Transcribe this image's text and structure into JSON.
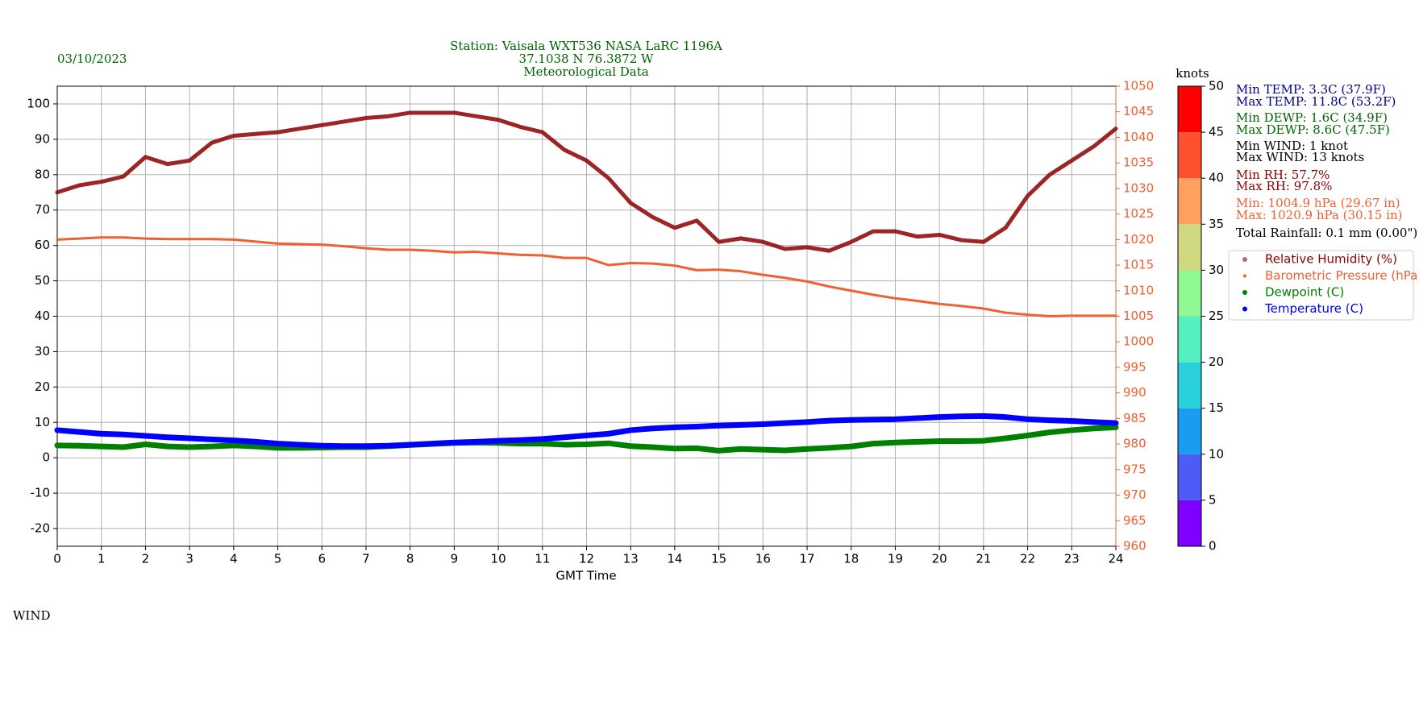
{
  "chart_data": {
    "type": "line",
    "date": "03/10/2023",
    "title": [
      "Station:  Vaisala WXT536  NASA LaRC 1196A",
      "37.1038 N 76.3872 W",
      "Meteorological Data"
    ],
    "xlabel": "GMT Time",
    "x": [
      0,
      0.5,
      1,
      1.5,
      2,
      2.5,
      3,
      3.5,
      4,
      4.5,
      5,
      5.5,
      6,
      6.5,
      7,
      7.5,
      8,
      8.5,
      9,
      9.5,
      10,
      10.5,
      11,
      11.5,
      12,
      12.5,
      13,
      13.5,
      14,
      14.5,
      15,
      15.5,
      16,
      16.5,
      17,
      17.5,
      18,
      18.5,
      19,
      19.5,
      20,
      20.5,
      21,
      21.5,
      22,
      22.5,
      23,
      23.5,
      24
    ],
    "xlim": [
      0,
      24
    ],
    "xticks": [
      0,
      1,
      2,
      3,
      4,
      5,
      6,
      7,
      8,
      9,
      10,
      11,
      12,
      13,
      14,
      15,
      16,
      17,
      18,
      19,
      20,
      21,
      22,
      23,
      24
    ],
    "ylim": [
      -25,
      105
    ],
    "yticks": [
      -20,
      -10,
      0,
      10,
      20,
      30,
      40,
      50,
      60,
      70,
      80,
      90,
      100
    ],
    "y2lim": [
      960,
      1050
    ],
    "y2ticks": [
      960,
      965,
      970,
      975,
      980,
      985,
      990,
      995,
      1000,
      1005,
      1010,
      1015,
      1020,
      1025,
      1030,
      1035,
      1040,
      1045,
      1050
    ],
    "y2color": "#f06030",
    "grid": true,
    "legend": "right",
    "series": [
      {
        "name": "Relative Humidity (%)",
        "color": "#8b0000",
        "values": [
          75,
          77,
          78,
          79.5,
          85,
          83,
          84,
          89,
          91,
          91.5,
          92,
          93,
          94,
          95,
          96,
          96.5,
          97.5,
          97.5,
          97.5,
          96.5,
          95.5,
          93.5,
          92,
          87,
          84,
          79,
          72,
          68,
          65,
          67,
          61,
          62,
          61,
          59,
          59.5,
          58.5,
          61,
          64,
          64,
          62.5,
          63,
          61.5,
          61,
          65,
          74,
          80,
          84,
          88,
          93
        ]
      },
      {
        "name": "Barometric Pressure (hPa)",
        "color": "#f06030",
        "axis": "y2",
        "values": [
          1020,
          1020.2,
          1020.4,
          1020.4,
          1020.2,
          1020.1,
          1020.1,
          1020.1,
          1020,
          1019.6,
          1019.2,
          1019.1,
          1019,
          1018.7,
          1018.3,
          1018,
          1018,
          1017.8,
          1017.5,
          1017.6,
          1017.3,
          1017,
          1016.9,
          1016.4,
          1016.4,
          1015,
          1015.4,
          1015.3,
          1014.9,
          1014,
          1014.1,
          1013.8,
          1013.1,
          1012.5,
          1011.8,
          1010.8,
          1010,
          1009.2,
          1008.5,
          1008,
          1007.4,
          1007,
          1006.5,
          1005.7,
          1005.3,
          1005,
          1005.1,
          1005.1,
          1005.1
        ]
      },
      {
        "name": "Dewpoint (C)",
        "color": "#008000",
        "values": [
          3.5,
          3.4,
          3.2,
          3,
          3.8,
          3.2,
          3,
          3.2,
          3.5,
          3.2,
          2.8,
          2.8,
          2.9,
          3,
          3,
          3.3,
          3.6,
          3.9,
          4.2,
          4.3,
          4.2,
          4,
          4,
          3.7,
          3.8,
          4.1,
          3.3,
          3,
          2.6,
          2.7,
          2,
          2.5,
          2.3,
          2.1,
          2.5,
          2.8,
          3.2,
          4,
          4.3,
          4.5,
          4.7,
          4.7,
          4.8,
          5.5,
          6.3,
          7.2,
          7.8,
          8.3,
          8.6
        ]
      },
      {
        "name": "Temperature (C)",
        "color": "#0000ff",
        "values": [
          7.8,
          7.3,
          6.8,
          6.6,
          6.2,
          5.8,
          5.5,
          5.2,
          4.9,
          4.5,
          4,
          3.7,
          3.4,
          3.3,
          3.3,
          3.4,
          3.7,
          4,
          4.3,
          4.5,
          4.8,
          5,
          5.3,
          5.8,
          6.3,
          6.8,
          7.8,
          8.3,
          8.6,
          8.8,
          9.1,
          9.3,
          9.5,
          9.8,
          10.1,
          10.5,
          10.7,
          10.8,
          10.9,
          11.2,
          11.5,
          11.7,
          11.8,
          11.5,
          10.9,
          10.6,
          10.4,
          10.1,
          9.8
        ]
      }
    ],
    "colorbar": {
      "label": "knots",
      "ticks": [
        0,
        5,
        10,
        15,
        20,
        25,
        30,
        35,
        40,
        45,
        50
      ],
      "colors": [
        "#8000ff",
        "#4c5cf4",
        "#1a9cf0",
        "#2ad0dc",
        "#55f0c0",
        "#90f890",
        "#d0d880",
        "#ffa060",
        "#ff5030",
        "#ff0000"
      ]
    },
    "stats": [
      {
        "text": "Min TEMP: 3.3C (37.9F)",
        "color": "#00008b"
      },
      {
        "text": "Max TEMP: 11.8C (53.2F)",
        "color": "#00008b"
      },
      {
        "text": "Min DEWP: 1.6C (34.9F)",
        "color": "#006400"
      },
      {
        "text": "Max DEWP: 8.6C (47.5F)",
        "color": "#006400"
      },
      {
        "text": "Min WIND: 1 knot",
        "color": "#000000"
      },
      {
        "text": "Max WIND: 13 knots",
        "color": "#000000"
      },
      {
        "text": "Min RH: 57.7%",
        "color": "#8b0000"
      },
      {
        "text": "Max RH: 97.8%",
        "color": "#8b0000"
      },
      {
        "text": "Min: 1004.9 hPa (29.67 in)",
        "color": "#f06030"
      },
      {
        "text": "Max: 1020.9 hPa (30.15 in)",
        "color": "#f06030"
      },
      {
        "text": "Total Rainfall: 0.1 mm (0.00\")",
        "color": "#000000"
      }
    ],
    "wind_label": "WIND"
  }
}
